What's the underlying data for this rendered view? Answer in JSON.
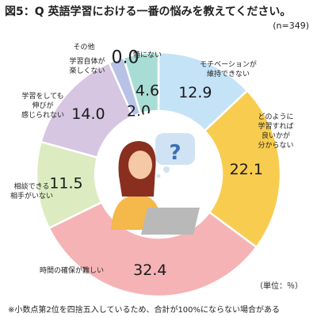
{
  "title": "図5：Q 英語学習における一番の悩みを教えてください。",
  "sample_size": "(n=349)",
  "unit": "（単位：％）",
  "footnote": "※小数点第2位を四捨五入しているため、合計が100%にならない場合がある",
  "chart_data": {
    "type": "pie",
    "donut": true,
    "start": "top",
    "direction": "clockwise",
    "slices": [
      {
        "label": "モチベーションが維持できない",
        "label_lines": [
          "モチベーションが",
          "維持できない"
        ],
        "value": 12.9,
        "display": "12.9",
        "color": "#c4e3f7"
      },
      {
        "label": "どのように学習すれば良いかが分からない",
        "label_lines": [
          "どのように",
          "学習すれば",
          "良いかが",
          "分からない"
        ],
        "value": 22.1,
        "display": "22.1",
        "color": "#f8cc4f"
      },
      {
        "label": "時間の確保が難しい",
        "label_lines": [
          "時間の確保が難しい"
        ],
        "value": 32.4,
        "display": "32.4",
        "color": "#f5b3b6"
      },
      {
        "label": "相談できる相手がいない",
        "label_lines": [
          "相談できる",
          "相手がいない"
        ],
        "value": 11.5,
        "display": "11.5",
        "color": "#dcebc0"
      },
      {
        "label": "学習をしても伸びが感じられない",
        "label_lines": [
          "学習をしても",
          "伸びが",
          "感じられない"
        ],
        "value": 14.0,
        "display": "14.0",
        "color": "#d6c6e2"
      },
      {
        "label": "学習自体が楽しくない",
        "label_lines": [
          "学習自体が",
          "楽しくない"
        ],
        "value": 2.0,
        "display": "2.0",
        "color": "#b7c2e6"
      },
      {
        "label": "その他",
        "label_lines": [
          "その他"
        ],
        "value": 0.0,
        "display": "0.0",
        "color": "#cfe7f5"
      },
      {
        "label": "特にない",
        "label_lines": [
          "特にない"
        ],
        "value": 4.6,
        "display": "4.6",
        "color": "#a8ddd6"
      }
    ]
  },
  "center_illustration": {
    "bubble_text": "?",
    "colors": {
      "hair": "#8a2f1f",
      "skin": "#f4c9a3",
      "shirt": "#f4b94a",
      "laptop": "#b9b9b9",
      "bubble": "#cfe3f4",
      "question": "#3b6fb5"
    }
  }
}
